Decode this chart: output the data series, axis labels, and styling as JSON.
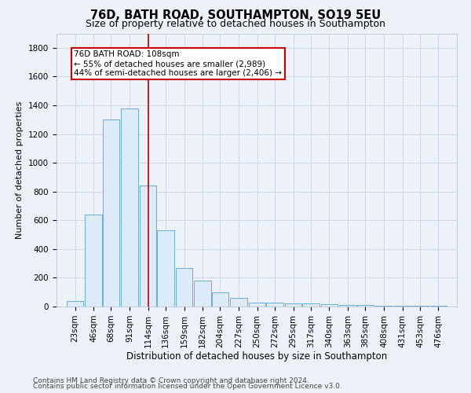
{
  "title1": "76D, BATH ROAD, SOUTHAMPTON, SO19 5EU",
  "title2": "Size of property relative to detached houses in Southampton",
  "xlabel": "Distribution of detached houses by size in Southampton",
  "ylabel": "Number of detached properties",
  "footer1": "Contains HM Land Registry data © Crown copyright and database right 2024.",
  "footer2": "Contains public sector information licensed under the Open Government Licence v3.0.",
  "annotation_line1": "76D BATH ROAD: 108sqm",
  "annotation_line2": "← 55% of detached houses are smaller (2,989)",
  "annotation_line3": "44% of semi-detached houses are larger (2,406) →",
  "categories": [
    23,
    46,
    68,
    91,
    114,
    136,
    159,
    182,
    204,
    227,
    250,
    272,
    295,
    317,
    340,
    363,
    385,
    408,
    431,
    453,
    476
  ],
  "category_labels": [
    "23sqm",
    "46sqm",
    "68sqm",
    "91sqm",
    "114sqm",
    "136sqm",
    "159sqm",
    "182sqm",
    "204sqm",
    "227sqm",
    "250sqm",
    "272sqm",
    "295sqm",
    "317sqm",
    "340sqm",
    "363sqm",
    "385sqm",
    "408sqm",
    "431sqm",
    "453sqm",
    "476sqm"
  ],
  "values": [
    40,
    640,
    1300,
    1380,
    840,
    530,
    270,
    180,
    100,
    60,
    30,
    30,
    20,
    20,
    15,
    10,
    10,
    5,
    5,
    5,
    5
  ],
  "bar_facecolor": "#ddeaf8",
  "bar_edgecolor": "#6aaed6",
  "vline_color": "#bb0000",
  "vline_x": 114,
  "ylim": [
    0,
    1900
  ],
  "yticks": [
    0,
    200,
    400,
    600,
    800,
    1000,
    1200,
    1400,
    1600,
    1800
  ],
  "xlim": [
    0,
    499
  ],
  "grid_color": "#c8d4e8",
  "background_color": "#edf2f9",
  "annotation_box_edgecolor": "#cc0000",
  "annotation_box_facecolor": "#ffffff",
  "title1_fontsize": 10.5,
  "title2_fontsize": 9,
  "xlabel_fontsize": 8.5,
  "ylabel_fontsize": 8,
  "tick_fontsize": 7.5,
  "annotation_fontsize": 7.5,
  "footer_fontsize": 6.5
}
